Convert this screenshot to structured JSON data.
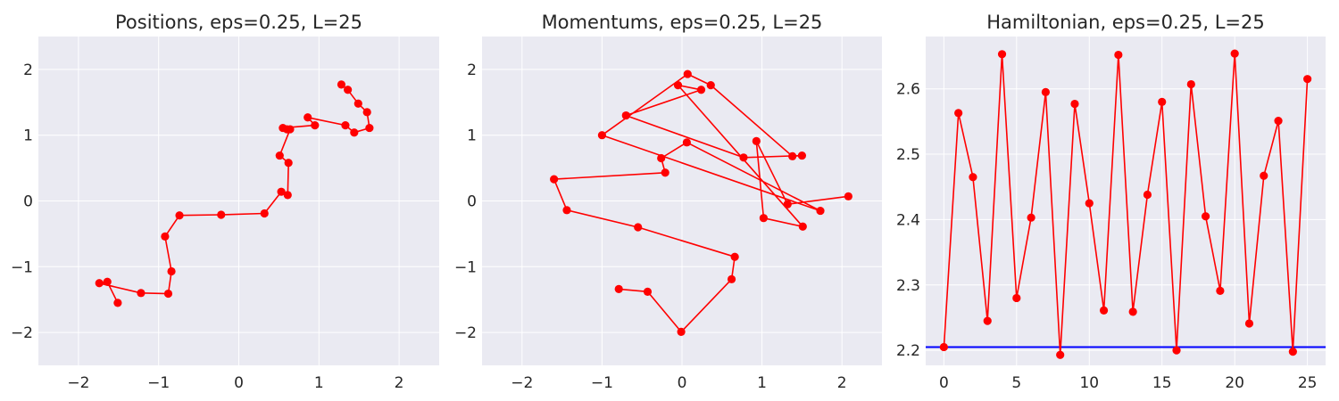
{
  "chart_data": [
    {
      "type": "line",
      "title": "Positions, eps=0.25, L=25",
      "xlabel": "",
      "ylabel": "",
      "xlim": [
        -2.5,
        2.5
      ],
      "ylim": [
        -2.5,
        2.5
      ],
      "xticks": [
        -2,
        -1,
        0,
        1,
        2
      ],
      "yticks": [
        -2,
        -1,
        0,
        1,
        2
      ],
      "xtick_labels": [
        "−2",
        "−1",
        "0",
        "1",
        "2"
      ],
      "ytick_labels": [
        "−2",
        "−1",
        "0",
        "1",
        "2"
      ],
      "grid": true,
      "line_color": "#ff0000",
      "marker": "circle",
      "series": [
        {
          "x": [
            -1.51,
            -1.64,
            -1.74,
            -1.22,
            -0.88,
            -0.84,
            -0.92,
            -0.74,
            -0.22,
            0.32,
            0.53,
            0.61,
            0.62,
            0.51,
            0.64,
            0.6,
            0.55,
            0.95,
            0.86,
            1.33,
            1.44,
            1.63,
            1.6,
            1.49,
            1.36,
            1.28
          ],
          "y": [
            -1.55,
            -1.23,
            -1.25,
            -1.4,
            -1.41,
            -1.07,
            -0.54,
            -0.22,
            -0.21,
            -0.19,
            0.14,
            0.09,
            0.58,
            0.69,
            1.09,
            1.09,
            1.11,
            1.15,
            1.27,
            1.15,
            1.04,
            1.11,
            1.35,
            1.48,
            1.69,
            1.77
          ]
        }
      ]
    },
    {
      "type": "line",
      "title": "Momentums, eps=0.25, L=25",
      "xlabel": "",
      "ylabel": "",
      "xlim": [
        -2.5,
        2.5
      ],
      "ylim": [
        -2.5,
        2.5
      ],
      "xticks": [
        -2,
        -1,
        0,
        1,
        2
      ],
      "yticks": [
        -2,
        -1,
        0,
        1,
        2
      ],
      "xtick_labels": [
        "−2",
        "−1",
        "0",
        "1",
        "2"
      ],
      "ytick_labels": [
        "−2",
        "−1",
        "0",
        "1",
        "2"
      ],
      "grid": true,
      "line_color": "#ff0000",
      "marker": "circle",
      "series": [
        {
          "x": [
            -0.79,
            -0.43,
            -0.01,
            0.62,
            0.66,
            -0.55,
            -1.44,
            -1.6,
            -0.21,
            -0.26,
            0.06,
            1.73,
            -1.0,
            0.07,
            0.36,
            1.38,
            1.5,
            0.77,
            -0.7,
            0.24,
            -0.05,
            1.51,
            1.02,
            0.93,
            1.32,
            2.08
          ],
          "y": [
            -1.34,
            -1.38,
            -1.99,
            -1.19,
            -0.85,
            -0.4,
            -0.14,
            0.33,
            0.43,
            0.65,
            0.89,
            -0.15,
            1.0,
            1.93,
            1.76,
            0.68,
            0.69,
            0.66,
            1.3,
            1.69,
            1.76,
            -0.39,
            -0.26,
            0.91,
            -0.05,
            0.07
          ]
        }
      ]
    },
    {
      "type": "line",
      "title": "Hamiltonian, eps=0.25, L=25",
      "xlabel": "",
      "ylabel": "",
      "xlim": [
        -1.25,
        26.25
      ],
      "ylim": [
        2.177,
        2.68
      ],
      "xticks": [
        0,
        5,
        10,
        15,
        20,
        25
      ],
      "yticks": [
        2.2,
        2.3,
        2.4,
        2.5,
        2.6
      ],
      "xtick_labels": [
        "0",
        "5",
        "10",
        "15",
        "20",
        "25"
      ],
      "ytick_labels": [
        "2.2",
        "2.3",
        "2.4",
        "2.5",
        "2.6"
      ],
      "grid": true,
      "line_color": "#ff0000",
      "marker": "circle",
      "hline": {
        "y": 2.205,
        "color": "#0000ff"
      },
      "series": [
        {
          "x": [
            0,
            1,
            2,
            3,
            4,
            5,
            6,
            7,
            8,
            9,
            10,
            11,
            12,
            13,
            14,
            15,
            16,
            17,
            18,
            19,
            20,
            21,
            22,
            23,
            24,
            25
          ],
          "y": [
            2.205,
            2.563,
            2.465,
            2.245,
            2.653,
            2.28,
            2.403,
            2.595,
            2.193,
            2.577,
            2.425,
            2.261,
            2.652,
            2.259,
            2.438,
            2.58,
            2.2,
            2.607,
            2.405,
            2.291,
            2.654,
            2.241,
            2.467,
            2.551,
            2.198,
            2.615
          ]
        }
      ]
    }
  ]
}
